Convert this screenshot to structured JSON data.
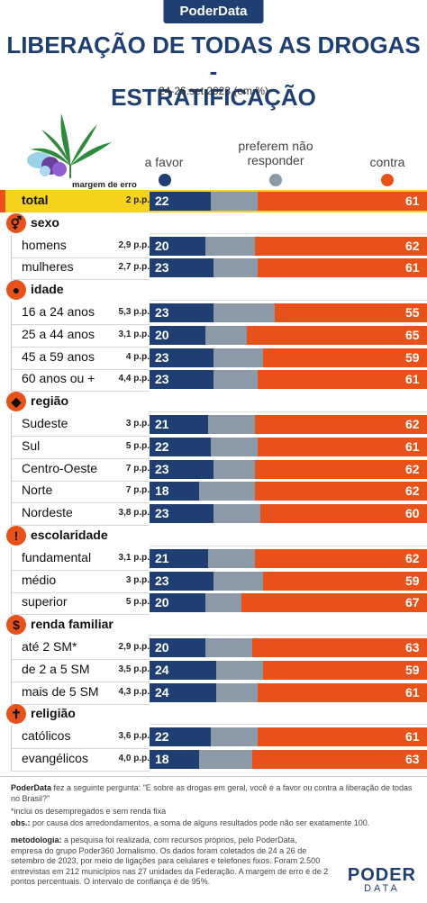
{
  "header": {
    "badge": "PoderData",
    "title_line1": "LIBERAÇÃO DE TODAS AS DROGAS -",
    "title_line2": "ESTRATIFICAÇÃO",
    "subtitle": "24-26.set.2023 (em %)"
  },
  "legend": {
    "favor": "a favor",
    "nao_responder_l1": "preferem não",
    "nao_responder_l2": "responder",
    "contra": "contra",
    "margin_header": "margem de erro"
  },
  "colors": {
    "favor": "#1f3f73",
    "nao_responder": "#8c9aa7",
    "contra": "#e8521a",
    "highlight": "#f5d21b"
  },
  "chart_data": {
    "type": "bar",
    "stacked": true,
    "orientation": "horizontal",
    "unit": "%",
    "series": [
      {
        "name": "a favor",
        "color": "#1f3f73"
      },
      {
        "name": "preferem não responder",
        "color": "#8c9aa7"
      },
      {
        "name": "contra",
        "color": "#e8521a"
      }
    ],
    "total": {
      "label": "total",
      "margin": "2 p.p.",
      "favor": 22,
      "nao_responder": 17,
      "contra": 61
    },
    "groups": [
      {
        "name": "sexo",
        "icon": "gender-icon",
        "icon_glyph": "⚥",
        "rows": [
          {
            "label": "homens",
            "margin": "2,9 p.p.",
            "favor": 20,
            "nao_responder": 18,
            "contra": 62
          },
          {
            "label": "mulheres",
            "margin": "2,7 p.p.",
            "favor": 23,
            "nao_responder": 16,
            "contra": 61
          }
        ]
      },
      {
        "name": "idade",
        "icon": "person-icon",
        "icon_glyph": "●",
        "rows": [
          {
            "label": "16 a 24 anos",
            "margin": "5,3 p.p.",
            "favor": 23,
            "nao_responder": 22,
            "contra": 55
          },
          {
            "label": "25 a 44 anos",
            "margin": "3,1 p.p.",
            "favor": 20,
            "nao_responder": 15,
            "contra": 65
          },
          {
            "label": "45 a 59 anos",
            "margin": "4 p.p.",
            "favor": 23,
            "nao_responder": 18,
            "contra": 59
          },
          {
            "label": "60 anos ou +",
            "margin": "4,4 p.p.",
            "favor": 23,
            "nao_responder": 16,
            "contra": 61
          }
        ]
      },
      {
        "name": "região",
        "icon": "brazil-map-icon",
        "icon_glyph": "◆",
        "rows": [
          {
            "label": "Sudeste",
            "margin": "3 p.p.",
            "favor": 21,
            "nao_responder": 17,
            "contra": 62
          },
          {
            "label": "Sul",
            "margin": "5 p.p.",
            "favor": 22,
            "nao_responder": 17,
            "contra": 61
          },
          {
            "label": "Centro-Oeste",
            "margin": "7 p.p.",
            "favor": 23,
            "nao_responder": 15,
            "contra": 62
          },
          {
            "label": "Norte",
            "margin": "7 p.p.",
            "favor": 18,
            "nao_responder": 20,
            "contra": 62
          },
          {
            "label": "Nordeste",
            "margin": "3,8 p.p.",
            "favor": 23,
            "nao_responder": 17,
            "contra": 60
          }
        ]
      },
      {
        "name": "escolaridade",
        "icon": "exclamation-icon",
        "icon_glyph": "!",
        "rows": [
          {
            "label": "fundamental",
            "margin": "3,1 p.p.",
            "favor": 21,
            "nao_responder": 17,
            "contra": 62
          },
          {
            "label": "médio",
            "margin": "3 p.p.",
            "favor": 23,
            "nao_responder": 18,
            "contra": 59
          },
          {
            "label": "superior",
            "margin": "5 p.p.",
            "favor": 20,
            "nao_responder": 13,
            "contra": 67
          }
        ]
      },
      {
        "name": "renda familiar",
        "icon": "dollar-icon",
        "icon_glyph": "$",
        "rows": [
          {
            "label": "até 2 SM*",
            "margin": "2,9 p.p.",
            "favor": 20,
            "nao_responder": 17,
            "contra": 63
          },
          {
            "label": "de 2 a 5 SM",
            "margin": "3,5 p.p.",
            "favor": 24,
            "nao_responder": 17,
            "contra": 59
          },
          {
            "label": "mais de 5 SM",
            "margin": "4,3 p.p.",
            "favor": 24,
            "nao_responder": 15,
            "contra": 61
          }
        ]
      },
      {
        "name": "religião",
        "icon": "cross-icon",
        "icon_glyph": "✝",
        "rows": [
          {
            "label": "católicos",
            "margin": "3,6 p.p.",
            "favor": 22,
            "nao_responder": 17,
            "contra": 61
          },
          {
            "label": "evangélicos",
            "margin": "4,0 p.p.",
            "favor": 18,
            "nao_responder": 19,
            "contra": 63
          }
        ]
      }
    ]
  },
  "footer": {
    "question_brand": "PoderData",
    "question_text": "fez a seguinte pergunta: \"E sobre as drogas em geral, você é a favor ou contra a liberação de todas no Brasil?\"",
    "note_sm": "*inclui os desempregados e sem renda fixa",
    "obs_label": "obs.:",
    "obs_text": "por causa dos arredondamentos, a soma de alguns resultados pode não ser exatamente 100.",
    "method_label": "metodologia:",
    "method_text": "a pesquisa foi realizada, com recursos próprios, pelo PoderData, empresa do grupo Poder360 Jornalismo. Os dados foram coletados de 24 a 26 de setembro de 2023, por meio de ligações para celulares e telefones fixos. Foram 2.500 entrevistas em 212 municípios nas 27 unidades da Federação. A margem de erro é de 2 pontos percentuais. O intervalo de confiança é de 95%.",
    "logo_line1": "PODER",
    "logo_line2": "DATA"
  }
}
